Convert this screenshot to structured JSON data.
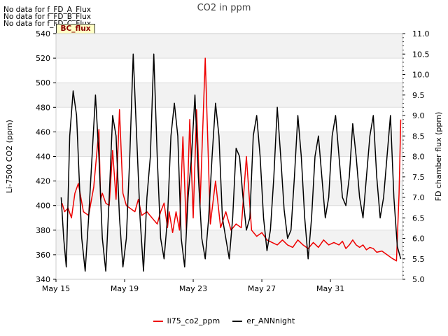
{
  "no_data_messages": [
    "No data for f_FD_A_Flux",
    "No data for f_FD_B_Flux",
    "No data for f_FD_C_Flux"
  ],
  "badge": "BC_flux",
  "chart_data": {
    "type": "line",
    "title": "CO2 in ppm",
    "xlabel": "",
    "ylabel": "Li-7500 CO2 (ppm)",
    "y2label": "FD chamber flux (ppm)",
    "xlim": [
      15.0,
      35.2
    ],
    "ylim": [
      340,
      540
    ],
    "y2lim": [
      5.0,
      11.0
    ],
    "x_ticks": [
      15,
      19,
      23,
      27,
      31
    ],
    "x_tick_labels": [
      "May 15",
      "May 19",
      "May 23",
      "May 27",
      "May 31"
    ],
    "y_ticks": [
      340,
      360,
      380,
      400,
      420,
      440,
      460,
      480,
      500,
      520,
      540
    ],
    "y2_ticks": [
      5.0,
      5.5,
      6.0,
      6.5,
      7.0,
      7.5,
      8.0,
      8.5,
      9.0,
      9.5,
      10.0,
      10.5,
      11.0
    ],
    "y2_tick_labels": [
      "5.0",
      "5.5",
      "6.0",
      "6.5",
      "7.0",
      "7.5",
      "8.0",
      "8.5",
      "9.0",
      "9.5",
      "10.0",
      "10.5",
      "11.0"
    ],
    "legend_position": "bottom-center",
    "series": [
      {
        "name": "li75_co2_ppm",
        "axis": "left",
        "color": "#ee0000",
        "x": [
          15.35,
          15.5,
          15.7,
          15.9,
          16.1,
          16.3,
          16.6,
          16.9,
          17.2,
          17.5,
          17.6,
          17.7,
          17.9,
          18.1,
          18.3,
          18.5,
          18.7,
          18.9,
          19.1,
          19.3,
          19.6,
          19.8,
          20.0,
          20.3,
          20.6,
          20.9,
          21.1,
          21.3,
          21.5,
          21.6,
          21.8,
          22.0,
          22.2,
          22.4,
          22.6,
          22.8,
          23.0,
          23.2,
          23.4,
          23.7,
          24.0,
          24.3,
          24.6,
          24.9,
          25.2,
          25.5,
          25.8,
          26.1,
          26.4,
          26.7,
          27.0,
          27.3,
          27.6,
          27.9,
          28.2,
          28.5,
          28.8,
          29.1,
          29.4,
          29.7,
          30.0,
          30.3,
          30.6,
          30.9,
          31.2,
          31.5,
          31.7,
          31.9,
          32.1,
          32.3,
          32.5,
          32.7,
          32.9,
          33.1,
          33.3,
          33.5,
          33.7,
          34.0,
          34.3,
          34.6,
          34.85,
          35.0,
          35.1
        ],
        "values": [
          402,
          395,
          398,
          390,
          410,
          418,
          395,
          392,
          415,
          462,
          405,
          410,
          402,
          400,
          445,
          405,
          478,
          410,
          400,
          398,
          395,
          405,
          392,
          395,
          390,
          385,
          395,
          402,
          382,
          395,
          378,
          395,
          380,
          456,
          380,
          470,
          390,
          478,
          400,
          520,
          385,
          420,
          382,
          395,
          380,
          385,
          382,
          440,
          380,
          375,
          378,
          372,
          370,
          368,
          372,
          368,
          366,
          372,
          368,
          365,
          370,
          366,
          372,
          368,
          370,
          368,
          371,
          365,
          368,
          372,
          368,
          366,
          368,
          364,
          366,
          365,
          362,
          363,
          360,
          357,
          355,
          410,
          470
        ]
      },
      {
        "name": "er_ANNnight",
        "axis": "right",
        "color": "#000000",
        "x": [
          15.3,
          15.45,
          15.6,
          15.8,
          16.0,
          16.2,
          16.4,
          16.5,
          16.7,
          16.9,
          17.1,
          17.3,
          17.5,
          17.7,
          17.9,
          18.1,
          18.3,
          18.5,
          18.7,
          18.9,
          19.1,
          19.3,
          19.5,
          19.7,
          19.9,
          20.1,
          20.3,
          20.5,
          20.7,
          20.9,
          21.1,
          21.3,
          21.5,
          21.7,
          21.9,
          22.1,
          22.3,
          22.5,
          22.7,
          22.9,
          23.1,
          23.3,
          23.5,
          23.7,
          23.9,
          24.1,
          24.3,
          24.5,
          24.7,
          24.9,
          25.1,
          25.3,
          25.5,
          25.7,
          25.9,
          26.1,
          26.3,
          26.5,
          26.7,
          26.9,
          27.1,
          27.3,
          27.5,
          27.7,
          27.9,
          28.1,
          28.3,
          28.5,
          28.7,
          28.9,
          29.1,
          29.3,
          29.5,
          29.7,
          29.9,
          30.1,
          30.3,
          30.5,
          30.7,
          30.9,
          31.1,
          31.3,
          31.5,
          31.7,
          31.9,
          32.1,
          32.3,
          32.5,
          32.7,
          32.9,
          33.1,
          33.3,
          33.5,
          33.7,
          33.9,
          34.1,
          34.3,
          34.5,
          34.7,
          34.9,
          35.1
        ],
        "values": [
          7.0,
          6.0,
          5.3,
          8.5,
          9.6,
          9.0,
          7.0,
          6.0,
          5.2,
          6.5,
          8.0,
          9.5,
          8.0,
          6.0,
          5.2,
          7.0,
          9.0,
          8.5,
          6.5,
          5.3,
          6.0,
          8.0,
          10.5,
          8.5,
          6.5,
          5.2,
          7.0,
          8.0,
          10.5,
          8.0,
          6.0,
          5.5,
          6.5,
          8.5,
          9.3,
          8.5,
          6.0,
          5.3,
          7.0,
          8.0,
          9.5,
          7.5,
          6.0,
          5.5,
          6.5,
          8.0,
          9.3,
          8.5,
          6.5,
          6.0,
          5.5,
          6.5,
          8.2,
          8.0,
          7.0,
          6.2,
          6.5,
          8.5,
          9.0,
          8.0,
          6.5,
          5.7,
          6.2,
          7.5,
          9.2,
          8.0,
          6.7,
          6.0,
          6.2,
          7.5,
          9.0,
          8.0,
          6.5,
          5.5,
          6.5,
          8.0,
          8.5,
          7.5,
          6.5,
          7.0,
          8.5,
          9.0,
          8.0,
          7.0,
          6.8,
          7.5,
          8.8,
          8.0,
          7.0,
          6.5,
          7.5,
          8.5,
          9.0,
          7.5,
          6.5,
          7.0,
          8.0,
          9.0,
          7.0,
          5.8,
          5.5
        ]
      }
    ]
  }
}
